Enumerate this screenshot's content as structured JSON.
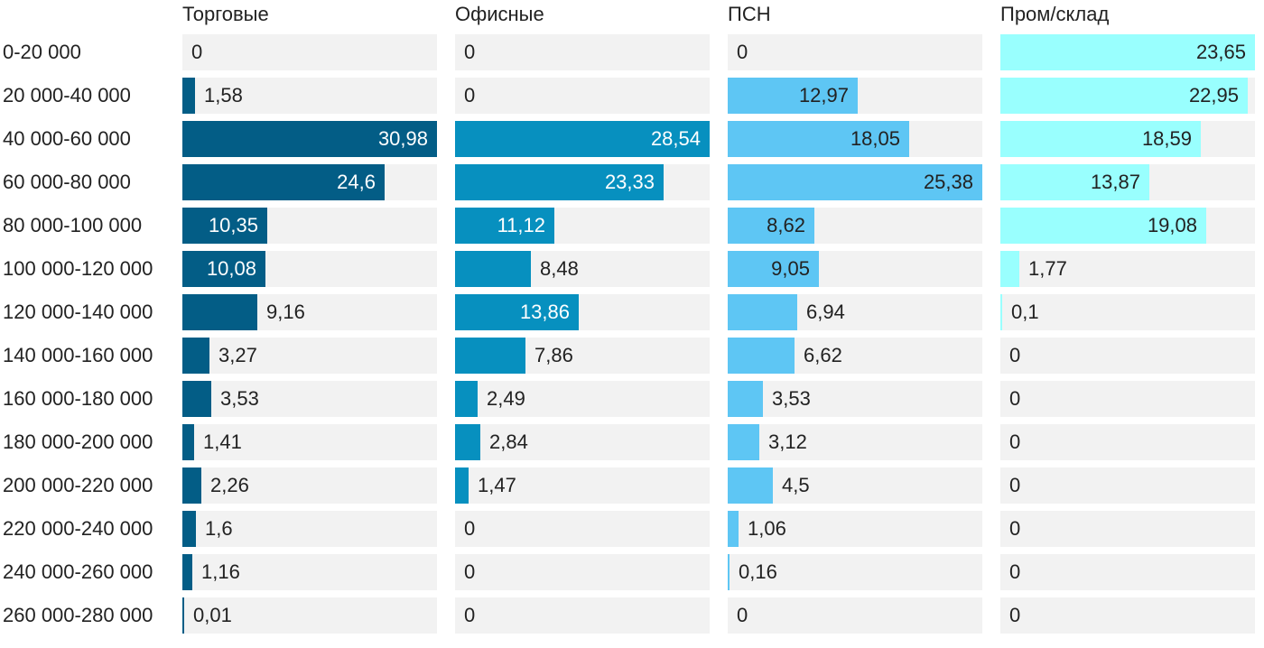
{
  "chart_data": {
    "type": "bar",
    "orientation": "horizontal",
    "layout": "small-multiples",
    "categories": [
      "0-20 000",
      "20 000-40 000",
      "40 000-60 000",
      "60 000-80 000",
      "80 000-100 000",
      "100 000-120 000",
      "120 000-140 000",
      "140 000-160 000",
      "160 000-180 000",
      "180 000-200 000",
      "200 000-220 000",
      "220 000-240 000",
      "240 000-260 000",
      "260 000-280 000"
    ],
    "series": [
      {
        "name": "Торговые",
        "color": "#035d86",
        "max": 30.98,
        "values": [
          0,
          1.58,
          30.98,
          24.6,
          10.35,
          10.08,
          9.16,
          3.27,
          3.53,
          1.41,
          2.26,
          1.6,
          1.16,
          0.01
        ],
        "labels": [
          "0",
          "1,58",
          "30,98",
          "24,6",
          "10,35",
          "10,08",
          "9,16",
          "3,27",
          "3,53",
          "1,41",
          "2,26",
          "1,6",
          "1,16",
          "0,01"
        ]
      },
      {
        "name": "Офисные",
        "color": "#0790bf",
        "max": 28.54,
        "values": [
          0,
          0,
          28.54,
          23.33,
          11.12,
          8.48,
          13.86,
          7.86,
          2.49,
          2.84,
          1.47,
          0,
          0,
          0
        ],
        "labels": [
          "0",
          "0",
          "28,54",
          "23,33",
          "11,12",
          "8,48",
          "13,86",
          "7,86",
          "2,49",
          "2,84",
          "1,47",
          "0",
          "0",
          "0"
        ]
      },
      {
        "name": "ПСН",
        "color": "#5ec6f4",
        "max": 25.38,
        "values": [
          0,
          12.97,
          18.05,
          25.38,
          8.62,
          9.05,
          6.94,
          6.62,
          3.53,
          3.12,
          4.5,
          1.06,
          0.16,
          0
        ],
        "labels": [
          "0",
          "12,97",
          "18,05",
          "25,38",
          "8,62",
          "9,05",
          "6,94",
          "6,62",
          "3,53",
          "3,12",
          "4,5",
          "1,06",
          "0,16",
          "0"
        ]
      },
      {
        "name": "Пром/склад",
        "color": "#99fffe",
        "max": 23.65,
        "values": [
          23.65,
          22.95,
          18.59,
          13.87,
          19.08,
          1.77,
          0.1,
          0,
          0,
          0,
          0,
          0,
          0,
          0
        ],
        "labels": [
          "23,65",
          "22,95",
          "18,59",
          "13,87",
          "19,08",
          "1,77",
          "0,1",
          "0",
          "0",
          "0",
          "0",
          "0",
          "0",
          "0"
        ]
      }
    ],
    "title": "",
    "xlabel": "",
    "ylabel": "",
    "grid": false,
    "legend": "none"
  }
}
